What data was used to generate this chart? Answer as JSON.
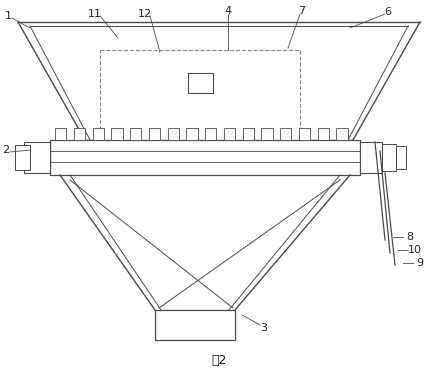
{
  "title": "图2",
  "bg_color": "#ffffff",
  "line_color": "#4a4a4a",
  "dashed_color": "#888888",
  "fig_width": 4.38,
  "fig_height": 3.77
}
